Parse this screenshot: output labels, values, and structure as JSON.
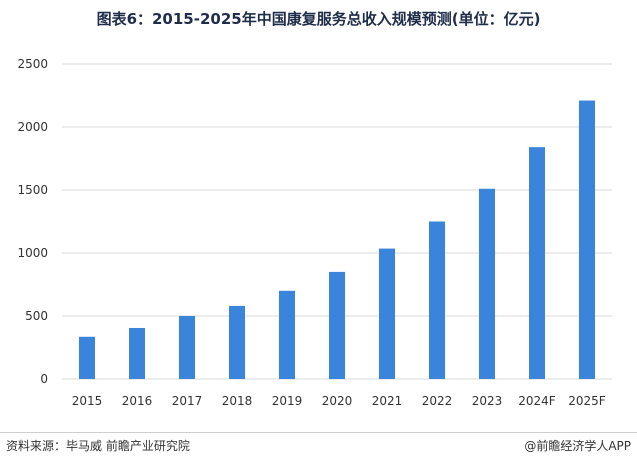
{
  "title": "图表6：2015-2025年中国康复服务总收入规模预测(单位：亿元)",
  "source": "资料来源：毕马威 前瞻产业研究院",
  "brand": "@前瞻经济学人APP",
  "colors": {
    "bar": "#3a84dc",
    "grid": "#d9d9d9",
    "title": "#1f2d4a"
  },
  "chart_data": {
    "type": "bar",
    "title": "图表6：2015-2025年中国康复服务总收入规模预测(单位：亿元)",
    "xlabel": "",
    "ylabel": "",
    "categories": [
      "2015",
      "2016",
      "2017",
      "2018",
      "2019",
      "2020",
      "2021",
      "2022",
      "2023",
      "2024F",
      "2025F"
    ],
    "values": [
      335,
      405,
      500,
      580,
      700,
      850,
      1035,
      1250,
      1510,
      1840,
      2210
    ],
    "ylim": [
      0,
      2500
    ],
    "yticks": [
      "0",
      "500",
      "1000",
      "1500",
      "2000",
      "2500"
    ],
    "grid": true,
    "legend": "none"
  }
}
